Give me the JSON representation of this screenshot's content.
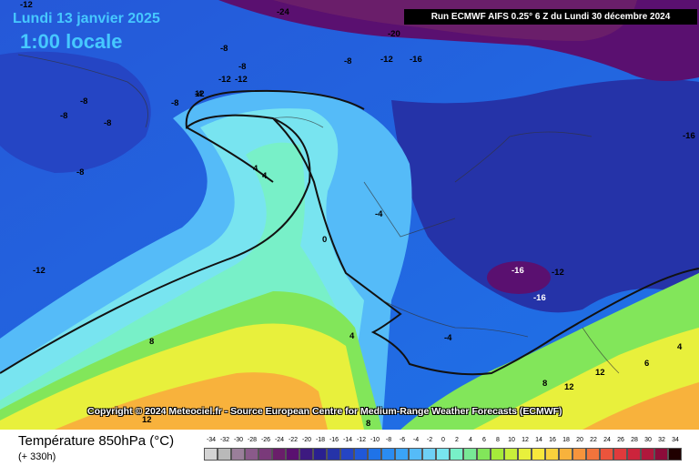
{
  "header": {
    "date": "Lundi 13 janvier 2025",
    "time": "1:00 locale",
    "run": "Run ECMWF AIFS 0.25° 6 Z du Lundi 30 décembre 2024"
  },
  "credit": "Copyright © 2024 Meteociel.fr - Source European Centre for Medium-Range Weather Forecasts (ECMWF)",
  "footer": {
    "variable": "Température 850hPa (°C)",
    "lead": "(+ 330h)"
  },
  "map_labels": [
    {
      "text": "-12",
      "color": "black"
    },
    {
      "text": "-24",
      "color": "black"
    },
    {
      "text": "-20",
      "color": "black"
    },
    {
      "text": "-8",
      "color": "black"
    },
    {
      "text": "-8",
      "color": "black"
    },
    {
      "text": "-12",
      "color": "black"
    },
    {
      "text": "-12",
      "color": "black"
    },
    {
      "text": "-16",
      "color": "black"
    },
    {
      "text": "-8",
      "color": "black"
    },
    {
      "text": "-12",
      "color": "black"
    },
    {
      "text": "12",
      "color": "black"
    },
    {
      "text": "-4",
      "color": "black"
    },
    {
      "text": "-8",
      "color": "black"
    },
    {
      "text": "-8",
      "color": "black"
    },
    {
      "text": "-8",
      "color": "black"
    },
    {
      "text": "-8",
      "color": "black"
    },
    {
      "text": "-8",
      "color": "black"
    },
    {
      "text": "4",
      "color": "black"
    },
    {
      "text": "4",
      "color": "black"
    },
    {
      "text": "-4",
      "color": "black"
    },
    {
      "text": "0",
      "color": "black"
    },
    {
      "text": "-12",
      "color": "black"
    },
    {
      "text": "-16",
      "color": "white"
    },
    {
      "text": "-12",
      "color": "black"
    },
    {
      "text": "-16",
      "color": "white"
    },
    {
      "text": "8",
      "color": "black"
    },
    {
      "text": "4",
      "color": "black"
    },
    {
      "text": "-4",
      "color": "black"
    },
    {
      "text": "8",
      "color": "black"
    },
    {
      "text": "12",
      "color": "black"
    },
    {
      "text": "12",
      "color": "black"
    },
    {
      "text": "8",
      "color": "black"
    },
    {
      "text": "12",
      "color": "black"
    },
    {
      "text": "4",
      "color": "black"
    },
    {
      "text": "6",
      "color": "black"
    },
    {
      "text": "-16",
      "color": "black"
    }
  ],
  "scale": {
    "values": [
      "-34",
      "-32",
      "-30",
      "-28",
      "-26",
      "-24",
      "-22",
      "-20",
      "-18",
      "-16",
      "-14",
      "-12",
      "-10",
      "-8",
      "-6",
      "-4",
      "-2",
      "0",
      "2",
      "4",
      "6",
      "8",
      "10",
      "12",
      "14",
      "16",
      "18",
      "20",
      "22",
      "24",
      "26",
      "28",
      "30",
      "32",
      "34"
    ],
    "colors": [
      "#d4d4d4",
      "#b9b9b9",
      "#9a7f9a",
      "#8a5a8a",
      "#7a3a7a",
      "#6a1e6a",
      "#5a1070",
      "#3d1a80",
      "#2a2090",
      "#2533a8",
      "#2545c4",
      "#2058d8",
      "#1f73e8",
      "#2a8cf2",
      "#3aa3f6",
      "#55bbf8",
      "#6ed0f6",
      "#78e4f0",
      "#78f0c8",
      "#78e896",
      "#82e65a",
      "#a6ea3a",
      "#c8ee3a",
      "#e8f03c",
      "#f8e83c",
      "#fad23c",
      "#f8b23c",
      "#f6943c",
      "#f2743c",
      "#ec543c",
      "#e03a3c",
      "#cc243c",
      "#b0183c",
      "#8c0c3a",
      "#200000"
    ]
  }
}
